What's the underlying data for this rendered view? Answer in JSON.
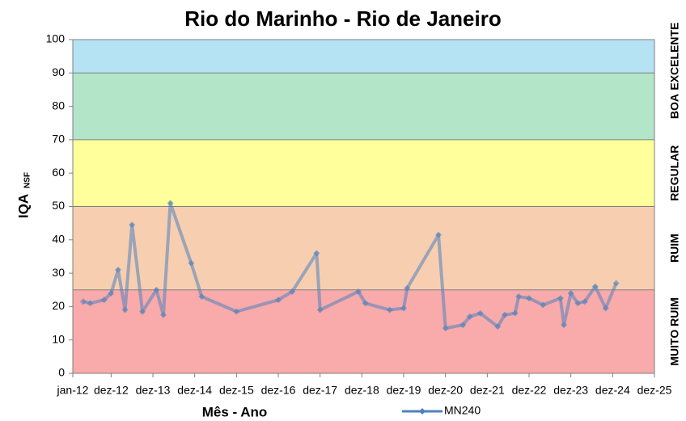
{
  "chart_data": {
    "type": "line",
    "title": "Rio do Marinho - Rio de Janeiro",
    "x_label": "Mês - Ano",
    "y_label": "IQA",
    "y_label_sub": "NSF",
    "xlim": [
      "2012-01",
      "2025-12"
    ],
    "xticks": [
      {
        "value": "2012-01",
        "label": "jan-12"
      },
      {
        "value": "2012-12",
        "label": "dez-12"
      },
      {
        "value": "2013-12",
        "label": "dez-13"
      },
      {
        "value": "2014-12",
        "label": "dez-14"
      },
      {
        "value": "2015-12",
        "label": "dez-15"
      },
      {
        "value": "2016-12",
        "label": "dez-16"
      },
      {
        "value": "2017-12",
        "label": "dez-17"
      },
      {
        "value": "2018-12",
        "label": "dez-18"
      },
      {
        "value": "2019-12",
        "label": "dez-19"
      },
      {
        "value": "2020-12",
        "label": "dez-20"
      },
      {
        "value": "2021-12",
        "label": "dez-21"
      },
      {
        "value": "2022-12",
        "label": "dez-22"
      },
      {
        "value": "2023-12",
        "label": "dez-23"
      },
      {
        "value": "2024-12",
        "label": "dez-24"
      },
      {
        "value": "2025-12",
        "label": "dez-25"
      }
    ],
    "ylim": [
      0,
      100
    ],
    "yticks": [
      0,
      10,
      20,
      30,
      40,
      50,
      60,
      70,
      80,
      90,
      100
    ],
    "bands": [
      {
        "label": "MUITO RUIM",
        "from": 0,
        "to": 25,
        "color": "#f9aaaa"
      },
      {
        "label": "RUIM",
        "from": 25,
        "to": 50,
        "color": "#f8ceb0"
      },
      {
        "label": "REGULAR",
        "from": 50,
        "to": 70,
        "color": "#ffff9c"
      },
      {
        "label": "BOA",
        "from": 70,
        "to": 90,
        "color": "#b3e5c8"
      },
      {
        "label": "EXCELENTE",
        "from": 90,
        "to": 100,
        "color": "#b5e3f4"
      }
    ],
    "x": [
      "2012-04",
      "2012-06",
      "2012-10",
      "2012-12",
      "2013-02",
      "2013-04",
      "2013-06",
      "2013-09",
      "2014-01",
      "2014-03",
      "2014-05",
      "2014-11",
      "2015-02",
      "2015-12",
      "2016-12",
      "2017-04",
      "2017-11",
      "2017-12",
      "2018-11",
      "2019-01",
      "2019-08",
      "2019-12",
      "2020-01",
      "2020-10",
      "2020-12",
      "2021-05",
      "2021-07",
      "2021-10",
      "2022-03",
      "2022-05",
      "2022-08",
      "2022-09",
      "2022-12",
      "2023-04",
      "2023-09",
      "2023-10",
      "2023-12",
      "2024-02",
      "2024-04",
      "2024-07",
      "2024-10",
      "2025-01"
    ],
    "series": [
      {
        "name": "MN240",
        "color": "#4f81bd",
        "values": [
          21.5,
          21,
          22,
          24,
          31,
          19,
          44.5,
          18.5,
          25,
          17.5,
          51,
          33,
          23,
          18.5,
          22,
          24.5,
          36,
          19,
          24.5,
          21,
          19,
          19.5,
          25.5,
          41.5,
          13.5,
          14.5,
          17,
          18,
          14,
          17.5,
          18,
          23,
          22.5,
          20.5,
          22.5,
          14.5,
          24,
          21,
          21.5,
          26,
          19.5,
          27
        ]
      }
    ]
  }
}
